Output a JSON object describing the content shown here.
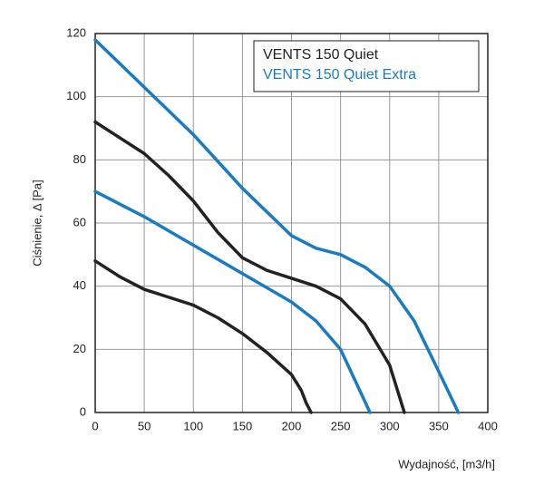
{
  "chart_data": {
    "type": "line",
    "xlabel": "Wydajność, [m3/h]",
    "ylabel": "Ciśnienie, Δ [Pa]",
    "xlim": [
      0,
      400
    ],
    "xticks": [
      0,
      50,
      100,
      150,
      200,
      250,
      300,
      350,
      400
    ],
    "ylim": [
      0,
      120
    ],
    "yticks": [
      0,
      20,
      40,
      60,
      80,
      100,
      120
    ],
    "grid": true,
    "legend": "upper right",
    "series": [
      {
        "name": "VENTS 150 Quiet",
        "color": "#222222",
        "curves": [
          {
            "x": [
              0,
              25,
              50,
              75,
              100,
              125,
              150,
              175,
              200,
              210,
              215,
              220
            ],
            "values": [
              48,
              43,
              39,
              36.5,
              34,
              30,
              25,
              19,
              12,
              7,
              3,
              0
            ]
          },
          {
            "x": [
              0,
              25,
              50,
              75,
              100,
              125,
              150,
              175,
              200,
              225,
              250,
              275,
              300,
              315
            ],
            "values": [
              92,
              87,
              82,
              75,
              67,
              57,
              49,
              45,
              42.5,
              40,
              36,
              28,
              15,
              0
            ]
          }
        ]
      },
      {
        "name": "VENTS 150 Quiet Extra",
        "color": "#1a7bc1",
        "curves": [
          {
            "x": [
              0,
              50,
              100,
              150,
              200,
              225,
              250,
              265,
              280
            ],
            "values": [
              70,
              62,
              53,
              44,
              35,
              29,
              20,
              10,
              0
            ]
          },
          {
            "x": [
              0,
              50,
              100,
              150,
              200,
              225,
              250,
              275,
              300,
              325,
              350,
              370
            ],
            "values": [
              118,
              103,
              88,
              71,
              56,
              52,
              50,
              46,
              40,
              29,
              13,
              0
            ]
          }
        ]
      }
    ]
  }
}
